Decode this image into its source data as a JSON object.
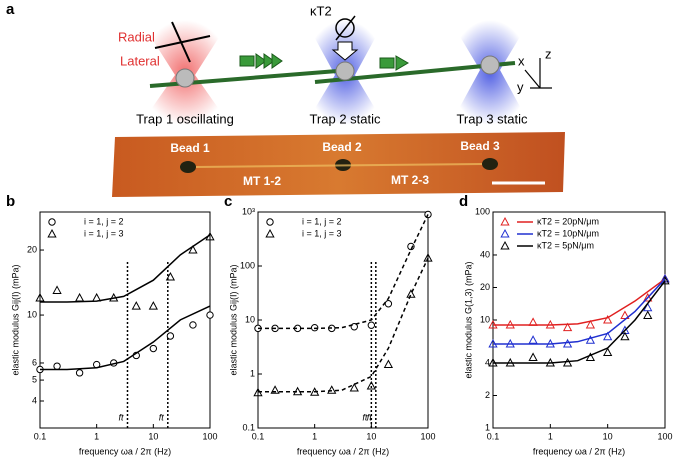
{
  "panel_a": {
    "label": "a",
    "radial": "Radial",
    "lateral": "Lateral",
    "kappa": "κT2",
    "traps": [
      "Trap 1 oscillating",
      "Trap 2 static",
      "Trap 3 static"
    ],
    "axes": [
      "x",
      "y",
      "z"
    ],
    "beads": [
      "Bead 1",
      "Bead 2",
      "Bead 3"
    ],
    "mts": [
      "MT 1-2",
      "MT 2-3"
    ]
  },
  "chart_data": [
    {
      "type": "line",
      "panel_label": "b",
      "xlabel": "frequency  ωa / 2π (Hz)",
      "ylabel": "elastic modulus Gij(I) (mPa)",
      "log_x": true,
      "log_y": true,
      "xlim": [
        0.1,
        100
      ],
      "xticks": [
        0.1,
        1,
        10,
        100
      ],
      "ylim": [
        3,
        30
      ],
      "yticks": [
        4,
        5,
        6,
        10,
        20
      ],
      "x": [
        0.1,
        0.2,
        0.5,
        1,
        2,
        5,
        10,
        20,
        50,
        100
      ],
      "series": [
        {
          "name": "i = 1, j = 2",
          "marker": "circle",
          "color": "#000000",
          "values": [
            5.6,
            5.8,
            5.4,
            5.9,
            6,
            6.5,
            7,
            8,
            9,
            10
          ]
        },
        {
          "name": "i = 1, j = 3",
          "marker": "triangle",
          "color": "#000000",
          "values": [
            12,
            13,
            12,
            12,
            12,
            11,
            11,
            15,
            20,
            23
          ]
        },
        {
          "line": "solid",
          "color": "#000000",
          "x": [
            0.1,
            0.3,
            1,
            3,
            10,
            30,
            100
          ],
          "values": [
            5.6,
            5.6,
            5.7,
            6.1,
            7.5,
            9.5,
            11
          ]
        },
        {
          "line": "solid",
          "color": "#000000",
          "x": [
            0.1,
            0.3,
            1,
            3,
            10,
            30,
            100
          ],
          "values": [
            11.5,
            11.5,
            11.6,
            12.2,
            14.5,
            19,
            23.5
          ]
        }
      ],
      "vlines": [
        {
          "x": 3.5,
          "label": "ft"
        },
        {
          "x": 18,
          "label": "ft"
        }
      ]
    },
    {
      "type": "line",
      "panel_label": "c",
      "xlabel": "frequency  ωa / 2π (Hz)",
      "ylabel": "elastic modulus Gij(I) (mPa)",
      "log_x": true,
      "log_y": true,
      "xlim": [
        0.1,
        100
      ],
      "xticks": [
        0.1,
        1,
        10,
        100
      ],
      "ylim": [
        0.1,
        1000
      ],
      "yticks": [
        0.1,
        1,
        10,
        100,
        {
          "value": 1000,
          "label": "10³"
        }
      ],
      "x": [
        0.1,
        0.2,
        0.5,
        1,
        2,
        5,
        10,
        20,
        50,
        100
      ],
      "series": [
        {
          "name": "i = 1, j = 2",
          "marker": "circle",
          "color": "#000000",
          "values": [
            7,
            7,
            7,
            7.2,
            7,
            7.5,
            8,
            20,
            230,
            900
          ]
        },
        {
          "name": "i = 1, j = 3",
          "marker": "triangle",
          "color": "#000000",
          "values": [
            0.45,
            0.5,
            0.47,
            0.46,
            0.5,
            0.55,
            0.6,
            1.5,
            30,
            140
          ]
        },
        {
          "line": "dashed",
          "color": "#000000",
          "x": [
            0.1,
            1,
            3,
            10,
            20,
            50,
            100
          ],
          "values": [
            7,
            7,
            7.2,
            10,
            25,
            200,
            900
          ]
        },
        {
          "line": "dashed",
          "color": "#000000",
          "x": [
            0.1,
            1,
            3,
            10,
            20,
            50,
            100
          ],
          "values": [
            0.47,
            0.47,
            0.5,
            0.9,
            3,
            30,
            140
          ]
        }
      ],
      "vlines": [
        {
          "x": 10,
          "label": "ft"
        },
        {
          "x": 12,
          "label": "ft"
        }
      ]
    },
    {
      "type": "line",
      "panel_label": "d",
      "xlabel": "frequency  ωa / 2π (Hz)",
      "ylabel": "elastic modulus G(1,3) (mPa)",
      "log_x": true,
      "log_y": true,
      "xlim": [
        0.1,
        100
      ],
      "xticks": [
        0.1,
        1,
        10,
        100
      ],
      "ylim": [
        1,
        100
      ],
      "yticks": [
        1,
        2,
        4,
        10,
        20,
        40,
        100
      ],
      "x": [
        0.1,
        0.2,
        0.5,
        1,
        2,
        5,
        10,
        20,
        50,
        100
      ],
      "series": [
        {
          "name": "κT2 = 20pN/μm",
          "marker": "triangle",
          "color": "#e02020",
          "values": [
            9,
            9,
            9.5,
            9,
            8.5,
            9,
            10,
            11,
            16,
            24
          ]
        },
        {
          "name": "κT2 = 10pN/μm",
          "marker": "triangle",
          "color": "#2030d0",
          "values": [
            6,
            6,
            6.5,
            6,
            6,
            6.5,
            7,
            8,
            13,
            24
          ]
        },
        {
          "name": "κT2 = 5pN/μm",
          "marker": "triangle",
          "color": "#000000",
          "values": [
            4,
            4,
            4.5,
            4,
            4,
            4.5,
            5,
            7,
            11,
            23
          ]
        },
        {
          "line": "solid",
          "color": "#e02020",
          "x": [
            0.1,
            1,
            3,
            10,
            30,
            100
          ],
          "values": [
            9,
            9,
            9.2,
            10.5,
            15,
            24
          ]
        },
        {
          "line": "solid",
          "color": "#2030d0",
          "x": [
            0.1,
            1,
            3,
            10,
            30,
            100
          ],
          "values": [
            6,
            6,
            6.3,
            7.5,
            12,
            24
          ]
        },
        {
          "line": "solid",
          "color": "#000000",
          "x": [
            0.1,
            1,
            3,
            10,
            30,
            100
          ],
          "values": [
            4,
            4,
            4.2,
            5.5,
            10,
            23
          ]
        }
      ]
    }
  ]
}
